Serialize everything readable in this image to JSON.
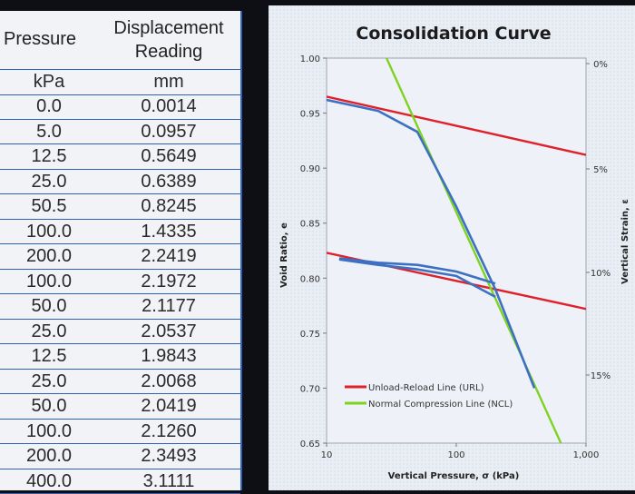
{
  "table": {
    "header_left": "Pressure",
    "header_right_line1": "Displacement",
    "header_right_line2": "Reading",
    "unit_left": "kPa",
    "unit_right": "mm",
    "rows": [
      {
        "pressure": "0.0",
        "reading": "0.0014"
      },
      {
        "pressure": "5.0",
        "reading": "0.0957"
      },
      {
        "pressure": "12.5",
        "reading": "0.5649"
      },
      {
        "pressure": "25.0",
        "reading": "0.6389"
      },
      {
        "pressure": "50.5",
        "reading": "0.8245"
      },
      {
        "pressure": "100.0",
        "reading": "1.4335"
      },
      {
        "pressure": "200.0",
        "reading": "2.2419"
      },
      {
        "pressure": "100.0",
        "reading": "2.1972"
      },
      {
        "pressure": "50.0",
        "reading": "2.1177"
      },
      {
        "pressure": "25.0",
        "reading": "2.0537"
      },
      {
        "pressure": "12.5",
        "reading": "1.9843"
      },
      {
        "pressure": "25.0",
        "reading": "2.0068"
      },
      {
        "pressure": "50.0",
        "reading": "2.0419"
      },
      {
        "pressure": "100.0",
        "reading": "2.1260"
      },
      {
        "pressure": "200.0",
        "reading": "2.3493"
      },
      {
        "pressure": "400.0",
        "reading": "3.1111"
      }
    ]
  },
  "chart_data": {
    "type": "line",
    "title": "Consolidation Curve",
    "xlabel": "Vertical Pressure, σ (kPa)",
    "ylabel": "Void Ratio, e",
    "y2label": "Vertical Strain, ε",
    "x_scale": "log",
    "xlim": [
      10,
      1000
    ],
    "ylim": [
      0.65,
      1.0
    ],
    "x_ticks": [
      "10",
      "100",
      "1,000"
    ],
    "y_ticks": [
      "0.65",
      "0.70",
      "0.75",
      "0.80",
      "0.85",
      "0.90",
      "0.95",
      "1.00"
    ],
    "y2_ticks": [
      "0%",
      "5%",
      "10%",
      "15%"
    ],
    "grid": true,
    "legend_position": "bottom-center",
    "series": [
      {
        "name": "",
        "color": "#3d6fc2",
        "points": [
          [
            10,
            0.962
          ],
          [
            25,
            0.952
          ],
          [
            50,
            0.933
          ],
          [
            100,
            0.865
          ],
          [
            200,
            0.79
          ],
          [
            400,
            0.7
          ]
        ]
      },
      {
        "name": "",
        "color": "#3d6fc2",
        "points": [
          [
            12.5,
            0.818
          ],
          [
            25,
            0.814
          ],
          [
            50,
            0.812
          ],
          [
            100,
            0.806
          ],
          [
            200,
            0.795
          ]
        ]
      },
      {
        "name": "",
        "color": "#3d6fc2",
        "points": [
          [
            12.5,
            0.817
          ],
          [
            25,
            0.812
          ],
          [
            50,
            0.808
          ],
          [
            100,
            0.802
          ],
          [
            200,
            0.783
          ]
        ]
      },
      {
        "name": "Unload-Reload Line (URL)",
        "color": "#e0202a",
        "points": [
          [
            10,
            0.965
          ],
          [
            1000,
            0.912
          ]
        ]
      },
      {
        "name": "",
        "color": "#e0202a",
        "points": [
          [
            10,
            0.823
          ],
          [
            1000,
            0.772
          ]
        ]
      },
      {
        "name": "Normal Compression Line (NCL)",
        "color": "#7ed321",
        "points": [
          [
            29,
            1.0
          ],
          [
            640,
            0.65
          ]
        ]
      }
    ]
  }
}
